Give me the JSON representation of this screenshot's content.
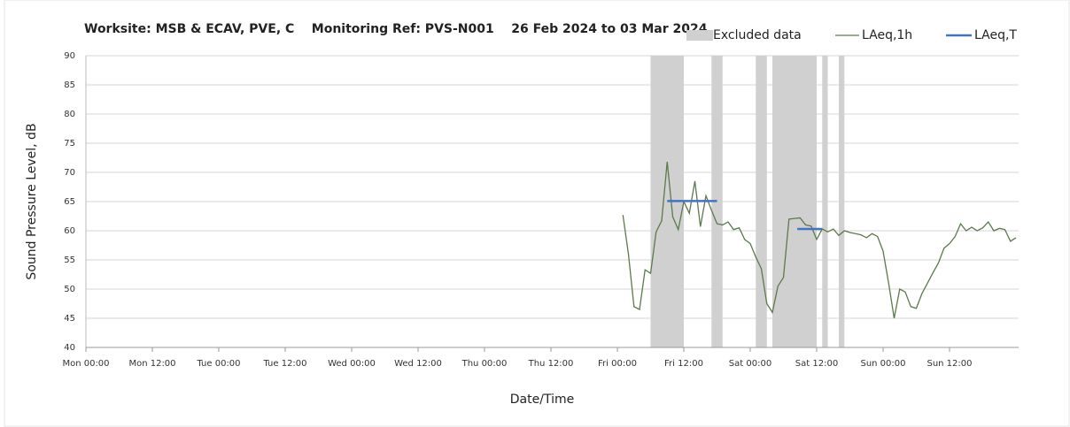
{
  "chart_data": {
    "type": "line",
    "title": "Worksite: MSB & ECAV, PVE, C    Monitoring Ref: PVS-N001    26 Feb 2024 to 03 Mar 2024",
    "xlabel": "Date/Time",
    "ylabel": "Sound Pressure Level, dB",
    "xlim": [
      0,
      168
    ],
    "xticks": [
      {
        "value": 0,
        "label": "Mon 00:00"
      },
      {
        "value": 12,
        "label": "Mon 12:00"
      },
      {
        "value": 24,
        "label": "Tue 00:00"
      },
      {
        "value": 36,
        "label": "Tue 12:00"
      },
      {
        "value": 48,
        "label": "Wed 00:00"
      },
      {
        "value": 60,
        "label": "Wed 12:00"
      },
      {
        "value": 72,
        "label": "Thu 00:00"
      },
      {
        "value": 84,
        "label": "Thu 12:00"
      },
      {
        "value": 96,
        "label": "Fri 00:00"
      },
      {
        "value": 108,
        "label": "Fri 12:00"
      },
      {
        "value": 120,
        "label": "Sat 00:00"
      },
      {
        "value": 132,
        "label": "Sat 12:00"
      },
      {
        "value": 144,
        "label": "Sun 00:00"
      },
      {
        "value": 156,
        "label": "Sun 12:00"
      }
    ],
    "ylim": [
      40,
      90
    ],
    "yticks": [
      40,
      45,
      50,
      55,
      60,
      65,
      70,
      75,
      80,
      85,
      90
    ],
    "grid": true,
    "excluded": {
      "name": "Excluded data",
      "color": "#d0d0d0",
      "ranges": [
        [
          102,
          108
        ],
        [
          113,
          115
        ],
        [
          121,
          123
        ],
        [
          124,
          132
        ],
        [
          133,
          134
        ],
        [
          136,
          137
        ]
      ]
    },
    "series": [
      {
        "name": "LAeq,1h",
        "color": "#5b7a4c",
        "x": [
          97,
          98,
          99,
          100,
          101,
          102,
          103,
          104,
          105,
          106,
          107,
          108,
          109,
          110,
          111,
          112,
          113,
          114,
          115,
          116,
          117,
          118,
          119,
          120,
          121,
          122,
          123,
          124,
          125,
          126,
          127,
          128,
          129,
          130,
          131,
          132,
          133,
          134,
          135,
          136,
          137,
          138,
          139,
          140,
          141,
          142,
          143,
          144,
          145,
          146,
          147,
          148,
          149,
          150,
          151,
          152,
          153,
          154,
          155,
          156,
          157,
          158,
          159,
          160,
          161,
          162,
          163,
          164,
          165,
          166,
          167,
          168
        ],
        "values": [
          62.7,
          56,
          47,
          46.5,
          53.3,
          52.7,
          59.8,
          61.7,
          71.8,
          62.4,
          60.2,
          65,
          63,
          68.5,
          60.7,
          66,
          63.5,
          61.2,
          61,
          61.5,
          60.2,
          60.5,
          58.5,
          57.8,
          55.5,
          53.5,
          47.5,
          46,
          50.5,
          52,
          62,
          62.1,
          62.2,
          61,
          60.8,
          58.5,
          60.3,
          59.8,
          60.3,
          59.2,
          60,
          59.7,
          59.5,
          59.3,
          58.8,
          59.5,
          59,
          56.5,
          51,
          45,
          50,
          49.5,
          47,
          46.7,
          49.2,
          51,
          52.8,
          54.5,
          57,
          57.8,
          59,
          61.2,
          60,
          60.6,
          60,
          60.5,
          61.5,
          60,
          60.4,
          60.2,
          58.2,
          58.8
        ]
      }
    ],
    "periods": {
      "name": "LAeq,T",
      "color": "#4472c4",
      "segments": [
        {
          "x": [
            105,
            114
          ],
          "value": 65.1
        },
        {
          "x": [
            128.5,
            133
          ],
          "value": 60.3
        }
      ]
    }
  }
}
